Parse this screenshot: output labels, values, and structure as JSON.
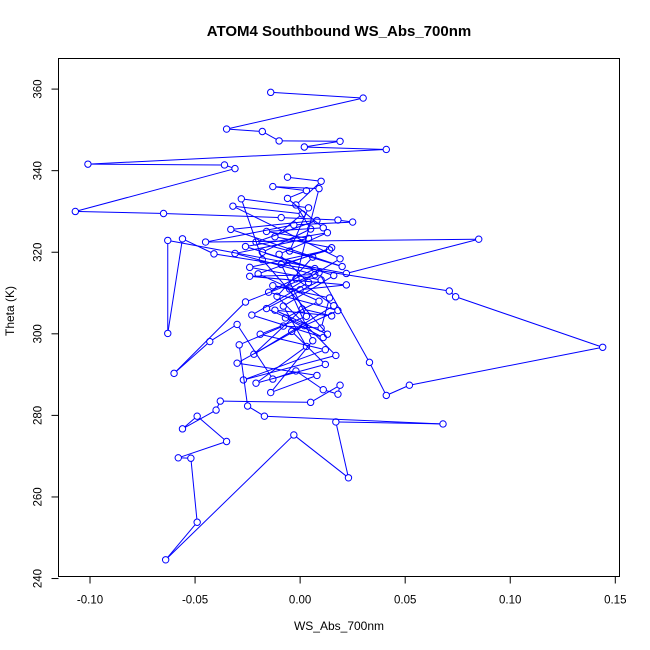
{
  "chart_data": {
    "type": "scatter",
    "title": "ATOM4 Southbound WS_Abs_700nm",
    "xlabel": "WS_Abs_700nm",
    "ylabel": "Theta (K)",
    "xlim": [
      -0.115,
      0.152
    ],
    "ylim": [
      240.5,
      367.5
    ],
    "xticks": [
      -0.1,
      -0.05,
      0.0,
      0.05,
      0.1,
      0.15
    ],
    "xtick_labels": [
      "-0.10",
      "-0.05",
      "0.00",
      "0.05",
      "0.10",
      "0.15"
    ],
    "yticks": [
      240,
      260,
      280,
      300,
      320,
      340,
      360
    ],
    "ytick_labels": [
      "240",
      "260",
      "280",
      "300",
      "320",
      "340",
      "360"
    ],
    "grid": false,
    "legend": "none",
    "style": "points connected by lines (type o)",
    "color": "#0000ff",
    "series": [
      {
        "points": [
          [
            -0.014,
            359.2
          ],
          [
            0.03,
            357.8
          ],
          [
            -0.035,
            350.2
          ],
          [
            -0.018,
            349.6
          ],
          [
            -0.01,
            347.3
          ],
          [
            0.019,
            347.2
          ],
          [
            0.002,
            345.8
          ],
          [
            0.041,
            345.2
          ],
          [
            -0.101,
            341.6
          ],
          [
            -0.036,
            341.4
          ],
          [
            -0.031,
            340.5
          ],
          [
            -0.107,
            330.0
          ],
          [
            -0.065,
            329.5
          ],
          [
            -0.009,
            328.5
          ],
          [
            0.018,
            327.9
          ],
          [
            0.025,
            327.4
          ],
          [
            -0.003,
            326.7
          ],
          [
            -0.045,
            322.5
          ],
          [
            0.085,
            323.2
          ],
          [
            0.022,
            314.8
          ],
          [
            -0.063,
            322.9
          ],
          [
            -0.063,
            300.1
          ],
          [
            -0.056,
            323.3
          ],
          [
            -0.041,
            319.6
          ],
          [
            0.071,
            310.5
          ],
          [
            0.074,
            309.1
          ],
          [
            0.144,
            296.7
          ],
          [
            0.052,
            287.4
          ],
          [
            0.041,
            284.9
          ],
          [
            0.033,
            293.0
          ],
          [
            0.009,
            315.0
          ],
          [
            -0.026,
            307.8
          ],
          [
            -0.06,
            290.3
          ],
          [
            -0.043,
            298.1
          ],
          [
            -0.03,
            302.3
          ],
          [
            -0.013,
            288.9
          ],
          [
            -0.002,
            290.9
          ],
          [
            0.011,
            286.3
          ],
          [
            0.018,
            285.2
          ],
          [
            0.019,
            287.4
          ],
          [
            0.005,
            283.2
          ],
          [
            -0.038,
            283.5
          ],
          [
            -0.04,
            281.3
          ],
          [
            -0.056,
            276.7
          ],
          [
            -0.049,
            279.8
          ],
          [
            -0.035,
            273.6
          ],
          [
            -0.058,
            269.6
          ],
          [
            -0.052,
            269.5
          ],
          [
            -0.049,
            253.8
          ],
          [
            -0.064,
            244.6
          ],
          [
            -0.003,
            275.2
          ],
          [
            0.023,
            264.7
          ],
          [
            0.017,
            278.4
          ],
          [
            0.068,
            277.9
          ],
          [
            -0.017,
            279.8
          ],
          [
            -0.025,
            282.3
          ],
          [
            -0.029,
            297.3
          ],
          [
            -0.008,
            301.9
          ],
          [
            0.01,
            301.4
          ],
          [
            0.014,
            308.8
          ],
          [
            -0.013,
            311.8
          ],
          [
            0.0,
            310.8
          ],
          [
            0.022,
            312.0
          ],
          [
            -0.024,
            314.1
          ],
          [
            0.007,
            314.5
          ],
          [
            -0.031,
            319.7
          ],
          [
            0.004,
            323.4
          ],
          [
            -0.016,
            325.1
          ],
          [
            0.011,
            326.0
          ],
          [
            -0.006,
            333.2
          ],
          [
            0.003,
            335.1
          ],
          [
            -0.013,
            336.1
          ],
          [
            0.009,
            335.6
          ],
          [
            -0.002,
            313.5
          ],
          [
            0.016,
            306.9
          ],
          [
            -0.022,
            295.0
          ],
          [
            0.001,
            306.1
          ],
          [
            0.015,
            304.4
          ],
          [
            -0.012,
            305.8
          ],
          [
            0.013,
            299.9
          ],
          [
            -0.018,
            318.2
          ],
          [
            -0.028,
            333.1
          ],
          [
            0.004,
            330.9
          ],
          [
            -0.005,
            320.3
          ],
          [
            0.02,
            316.5
          ],
          [
            -0.033,
            325.6
          ],
          [
            0.008,
            327.8
          ],
          [
            -0.021,
            322.5
          ],
          [
            0.006,
            318.8
          ],
          [
            -0.011,
            309.2
          ],
          [
            0.017,
            294.7
          ],
          [
            -0.027,
            288.7
          ],
          [
            0.012,
            296.1
          ],
          [
            -0.019,
            299.9
          ],
          [
            0.003,
            304.3
          ],
          [
            -0.009,
            317.0
          ],
          [
            0.014,
            320.6
          ],
          [
            -0.024,
            316.3
          ],
          [
            0.01,
            313.2
          ],
          [
            -0.016,
            306.2
          ],
          [
            0.002,
            302.0
          ],
          [
            -0.03,
            292.8
          ],
          [
            0.008,
            289.8
          ],
          [
            -0.014,
            285.6
          ],
          [
            0.006,
            298.3
          ],
          [
            -0.005,
            311.0
          ],
          [
            0.019,
            318.4
          ],
          [
            -0.032,
            331.3
          ],
          [
            0.001,
            329.4
          ],
          [
            -0.012,
            323.8
          ],
          [
            0.015,
            321.1
          ],
          [
            -0.02,
            314.7
          ],
          [
            0.009,
            308.0
          ],
          [
            -0.007,
            303.9
          ],
          [
            0.011,
            299.1
          ],
          [
            -0.023,
            304.6
          ],
          [
            0.004,
            312.6
          ],
          [
            -0.01,
            319.5
          ],
          [
            0.013,
            324.8
          ],
          [
            -0.026,
            321.4
          ],
          [
            0.007,
            316.0
          ],
          [
            -0.015,
            310.2
          ],
          [
            0.018,
            305.7
          ],
          [
            -0.004,
            300.6
          ],
          [
            0.012,
            292.5
          ],
          [
            -0.021,
            287.9
          ],
          [
            0.003,
            296.9
          ],
          [
            -0.008,
            306.8
          ],
          [
            0.016,
            314.3
          ],
          [
            -0.018,
            320.0
          ],
          [
            0.005,
            325.7
          ],
          [
            -0.002,
            331.6
          ],
          [
            0.01,
            337.4
          ],
          [
            -0.006,
            338.4
          ]
        ]
      }
    ]
  }
}
